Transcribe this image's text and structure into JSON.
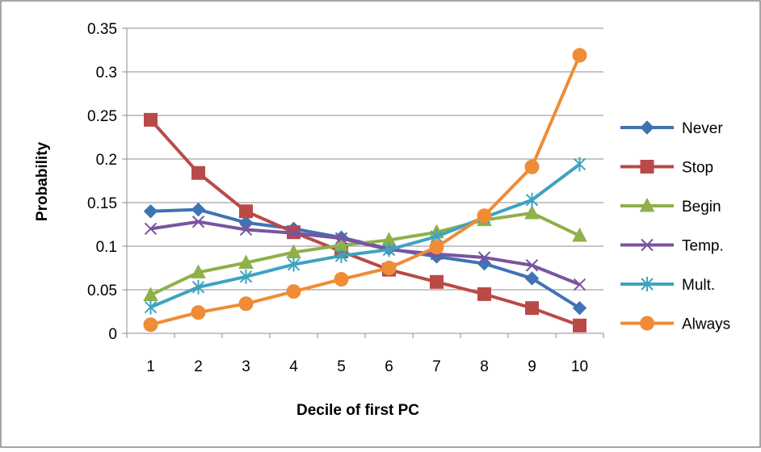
{
  "chart_data": {
    "type": "line",
    "title": "",
    "xlabel": "Decile of first PC",
    "ylabel": "Probability",
    "categories": [
      "1",
      "2",
      "3",
      "4",
      "5",
      "6",
      "7",
      "8",
      "9",
      "10"
    ],
    "ylim": [
      0,
      0.35
    ],
    "yticks": [
      "0",
      "0.05",
      "0.1",
      "0.15",
      "0.2",
      "0.25",
      "0.3",
      "0.35"
    ],
    "grid": "horizontal",
    "legend_position": "right",
    "series": [
      {
        "name": "Never",
        "color": "#3f73b5",
        "marker": "diamond",
        "values": [
          0.14,
          0.142,
          0.127,
          0.12,
          0.11,
          0.097,
          0.088,
          0.08,
          0.063,
          0.029
        ]
      },
      {
        "name": "Stop",
        "color": "#b94a48",
        "marker": "square",
        "values": [
          0.245,
          0.184,
          0.14,
          0.116,
          0.094,
          0.073,
          0.059,
          0.045,
          0.029,
          0.009
        ]
      },
      {
        "name": "Begin",
        "color": "#8fb04a",
        "marker": "triangle",
        "values": [
          0.044,
          0.07,
          0.081,
          0.093,
          0.101,
          0.107,
          0.116,
          0.13,
          0.138,
          0.112
        ]
      },
      {
        "name": "Temp.",
        "color": "#7a549e",
        "marker": "x",
        "values": [
          0.12,
          0.128,
          0.119,
          0.115,
          0.109,
          0.096,
          0.091,
          0.087,
          0.078,
          0.056
        ]
      },
      {
        "name": "Mult.",
        "color": "#3ea3bf",
        "marker": "star",
        "values": [
          0.03,
          0.053,
          0.065,
          0.079,
          0.089,
          0.096,
          0.111,
          0.133,
          0.153,
          0.194
        ]
      },
      {
        "name": "Always",
        "color": "#ef8c35",
        "marker": "circle",
        "values": [
          0.01,
          0.024,
          0.034,
          0.048,
          0.062,
          0.075,
          0.099,
          0.135,
          0.191,
          0.319
        ]
      }
    ]
  }
}
